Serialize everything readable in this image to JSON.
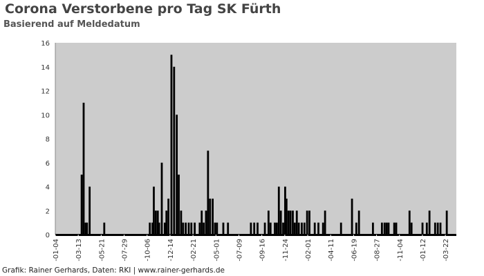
{
  "chart_data": {
    "type": "bar",
    "title": "Corona Verstorbene pro Tag SK Fürth",
    "subtitle": "Basierend auf Meldedatum",
    "xlabel": "",
    "ylabel": "",
    "xlim": [
      "2020-01-04",
      "2023-04-24"
    ],
    "ylim": [
      0,
      16
    ],
    "yticks": [
      0,
      2,
      4,
      6,
      8,
      10,
      12,
      14,
      16
    ],
    "xticks": [
      {
        "date": "2020-01-04",
        "label": "-01-04"
      },
      {
        "date": "2020-03-13",
        "label": "-03-13"
      },
      {
        "date": "2020-05-21",
        "label": "-05-21"
      },
      {
        "date": "2020-07-29",
        "label": "-07-29"
      },
      {
        "date": "2020-10-06",
        "label": "-10-06"
      },
      {
        "date": "2020-12-14",
        "label": "-12-14"
      },
      {
        "date": "2021-02-21",
        "label": "-02-21"
      },
      {
        "date": "2021-05-01",
        "label": "-05-01"
      },
      {
        "date": "2021-07-09",
        "label": "-07-09"
      },
      {
        "date": "2021-09-16",
        "label": "-09-16"
      },
      {
        "date": "2021-11-24",
        "label": "-11-24"
      },
      {
        "date": "2022-02-01",
        "label": "-02-01"
      },
      {
        "date": "2022-04-11",
        "label": "-04-11"
      },
      {
        "date": "2022-06-19",
        "label": "-06-19"
      },
      {
        "date": "2022-08-27",
        "label": "-08-27"
      },
      {
        "date": "2022-11-04",
        "label": "-11-04"
      },
      {
        "date": "2023-01-12",
        "label": "-01-12"
      },
      {
        "date": "2023-03-22",
        "label": "-03-22"
      }
    ],
    "grid": false,
    "colors": {
      "bars": "#000000",
      "plot_background": "#cccccc",
      "title": "#444444"
    },
    "points": [
      [
        "2020-03-23",
        5
      ],
      [
        "2020-03-29",
        11
      ],
      [
        "2020-04-04",
        1
      ],
      [
        "2020-04-08",
        1
      ],
      [
        "2020-04-16",
        4
      ],
      [
        "2020-05-30",
        1
      ],
      [
        "2020-10-14",
        1
      ],
      [
        "2020-10-22",
        1
      ],
      [
        "2020-10-26",
        4
      ],
      [
        "2020-11-01",
        2
      ],
      [
        "2020-11-07",
        2
      ],
      [
        "2020-11-11",
        1
      ],
      [
        "2020-11-19",
        6
      ],
      [
        "2020-11-28",
        1
      ],
      [
        "2020-12-03",
        2
      ],
      [
        "2020-12-09",
        3
      ],
      [
        "2020-12-18",
        15
      ],
      [
        "2020-12-26",
        14
      ],
      [
        "2021-01-03",
        10
      ],
      [
        "2021-01-09",
        5
      ],
      [
        "2021-01-16",
        2
      ],
      [
        "2021-01-22",
        1
      ],
      [
        "2021-01-30",
        1
      ],
      [
        "2021-02-08",
        1
      ],
      [
        "2021-02-16",
        1
      ],
      [
        "2021-02-26",
        1
      ],
      [
        "2021-03-13",
        1
      ],
      [
        "2021-03-19",
        2
      ],
      [
        "2021-03-25",
        1
      ],
      [
        "2021-04-01",
        2
      ],
      [
        "2021-04-07",
        7
      ],
      [
        "2021-04-13",
        3
      ],
      [
        "2021-04-21",
        3
      ],
      [
        "2021-04-28",
        1
      ],
      [
        "2021-05-04",
        1
      ],
      [
        "2021-05-23",
        1
      ],
      [
        "2021-06-06",
        1
      ],
      [
        "2021-08-14",
        1
      ],
      [
        "2021-08-24",
        1
      ],
      [
        "2021-09-03",
        1
      ],
      [
        "2021-09-25",
        1
      ],
      [
        "2021-10-06",
        2
      ],
      [
        "2021-10-12",
        1
      ],
      [
        "2021-10-25",
        1
      ],
      [
        "2021-10-31",
        1
      ],
      [
        "2021-11-06",
        4
      ],
      [
        "2021-11-12",
        2
      ],
      [
        "2021-11-19",
        1
      ],
      [
        "2021-11-25",
        4
      ],
      [
        "2021-11-29",
        3
      ],
      [
        "2021-12-05",
        2
      ],
      [
        "2021-12-11",
        2
      ],
      [
        "2021-12-18",
        2
      ],
      [
        "2021-12-24",
        1
      ],
      [
        "2021-12-30",
        2
      ],
      [
        "2022-01-05",
        1
      ],
      [
        "2022-01-14",
        1
      ],
      [
        "2022-01-22",
        1
      ],
      [
        "2022-01-30",
        2
      ],
      [
        "2022-02-06",
        2
      ],
      [
        "2022-02-22",
        1
      ],
      [
        "2022-03-05",
        1
      ],
      [
        "2022-03-19",
        1
      ],
      [
        "2022-03-25",
        2
      ],
      [
        "2022-05-12",
        1
      ],
      [
        "2022-06-14",
        3
      ],
      [
        "2022-06-27",
        1
      ],
      [
        "2022-07-05",
        2
      ],
      [
        "2022-08-16",
        1
      ],
      [
        "2022-09-12",
        1
      ],
      [
        "2022-09-20",
        1
      ],
      [
        "2022-09-26",
        1
      ],
      [
        "2022-10-02",
        1
      ],
      [
        "2022-10-19",
        1
      ],
      [
        "2022-10-25",
        1
      ],
      [
        "2022-12-04",
        2
      ],
      [
        "2022-12-10",
        1
      ],
      [
        "2023-01-12",
        1
      ],
      [
        "2023-01-25",
        1
      ],
      [
        "2023-02-02",
        2
      ],
      [
        "2023-02-19",
        1
      ],
      [
        "2023-02-27",
        1
      ],
      [
        "2023-03-07",
        1
      ],
      [
        "2023-03-26",
        2
      ]
    ]
  },
  "footer": "Grafik: Rainer Gerhards, Daten: RKI | www.rainer-gerhards.de"
}
